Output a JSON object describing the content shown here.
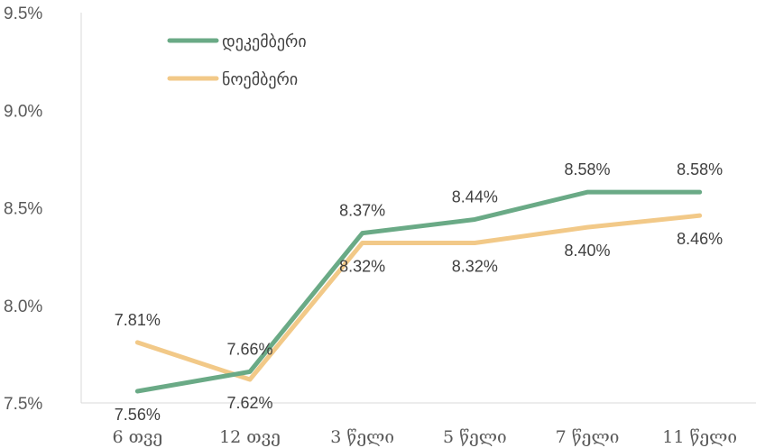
{
  "chart_data": {
    "type": "line",
    "categories": [
      "6 თვე",
      "12 თვე",
      "3 წელი",
      "5 წელი",
      "7 წელი",
      "11 წელი"
    ],
    "series": [
      {
        "name": "დეკემბერი",
        "values": [
          7.56,
          7.66,
          8.37,
          8.44,
          8.58,
          8.58
        ],
        "labels": [
          "7.56%",
          "7.66%",
          "8.37%",
          "8.44%",
          "8.58%",
          "8.58%"
        ],
        "color": "#6aaa86"
      },
      {
        "name": "ნოემბერი",
        "values": [
          7.81,
          7.62,
          8.32,
          8.32,
          8.4,
          8.46
        ],
        "labels": [
          "7.81%",
          "7.62%",
          "8.32%",
          "8.32%",
          "8.40%",
          "8.46%"
        ],
        "color": "#f2c988"
      }
    ],
    "ylim": [
      7.5,
      9.5
    ],
    "yticks": [
      7.5,
      8.0,
      8.5,
      9.0,
      9.5
    ],
    "ytick_labels": [
      "7.5%",
      "8.0%",
      "8.5%",
      "9.0%",
      "9.5%"
    ],
    "title": "",
    "xlabel": "",
    "ylabel": "",
    "grid": false,
    "legend_position": "top-left"
  }
}
